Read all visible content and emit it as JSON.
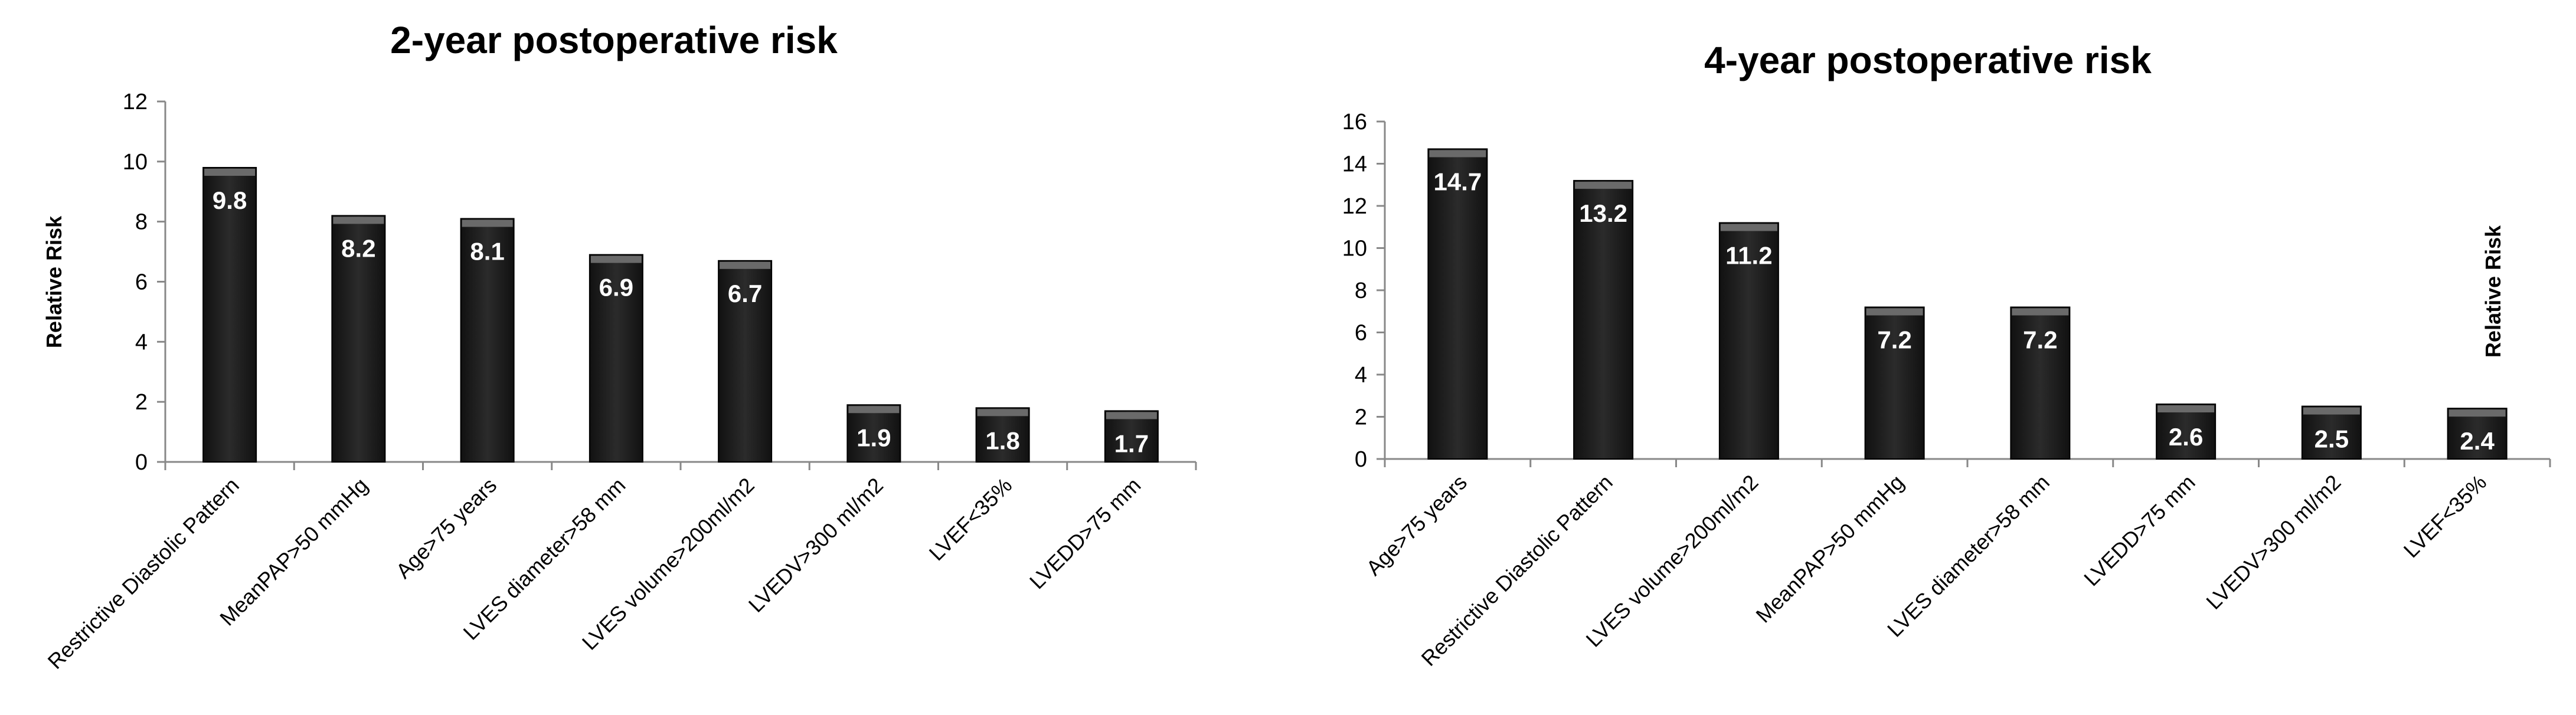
{
  "chart_data": [
    {
      "type": "bar",
      "title": "2-year postoperative risk",
      "xlabel": "",
      "ylabel": "Relative Risk",
      "ylim": [
        0,
        12
      ],
      "yticks": [
        0,
        2,
        4,
        6,
        8,
        10,
        12
      ],
      "grid": false,
      "legend": "none",
      "bar_color": "#2b2b2b",
      "categories": [
        "Restrictive Diastolic Pattern",
        "MeanPAP>50 mmHg",
        "Age>75 years",
        "LVES diameter>58 mm",
        "LVES volume>200ml/m2",
        "LVEDV>300 ml/m2",
        "LVEF<35%",
        "LVEDD>75 mm"
      ],
      "values": [
        9.8,
        8.2,
        8.1,
        6.9,
        6.7,
        1.9,
        1.8,
        1.7
      ]
    },
    {
      "type": "bar",
      "title": "4-year postoperative risk",
      "xlabel": "",
      "ylabel": "Relative Risk",
      "ylim": [
        0,
        16
      ],
      "yticks": [
        0,
        2,
        4,
        6,
        8,
        10,
        12,
        14,
        16
      ],
      "grid": false,
      "legend": "none",
      "bar_color": "#2b2b2b",
      "categories": [
        "Age>75 years",
        "Restrictive Diastolic Pattern",
        "LVES volume>200ml/m2",
        "MeanPAP>50 mmHg",
        "LVES diameter>58 mm",
        "LVEDD>75 mm",
        "LVEDV>300 ml/m2",
        "LVEF<35%"
      ],
      "values": [
        14.7,
        13.2,
        11.2,
        7.2,
        7.2,
        2.6,
        2.5,
        2.4
      ]
    }
  ]
}
